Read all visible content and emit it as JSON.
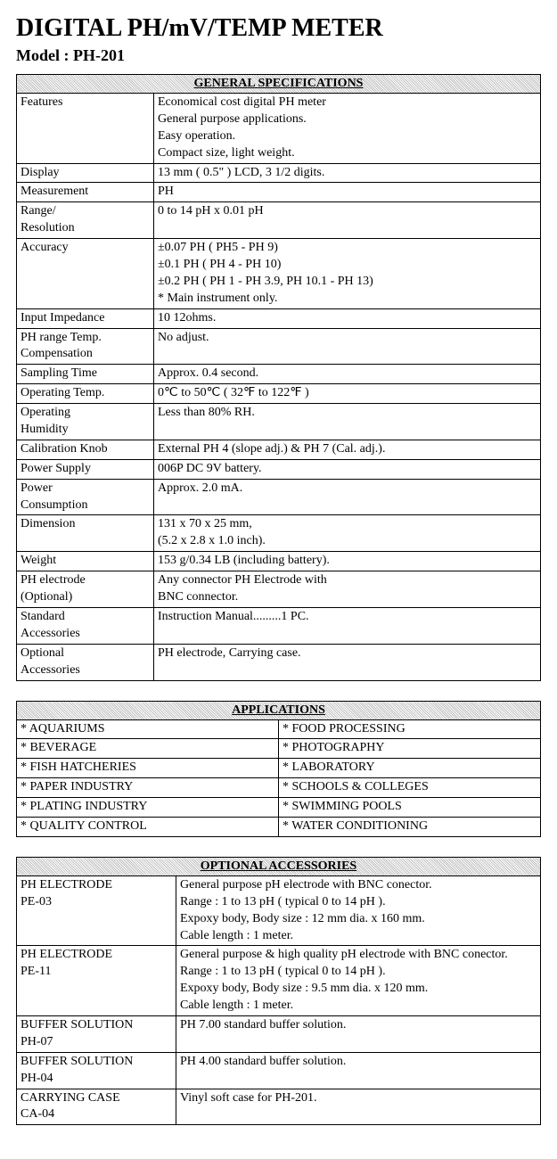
{
  "title": "DIGITAL PH/mV/TEMP METER",
  "model": "Model : PH-201",
  "specs": {
    "header": "GENERAL SPECIFICATIONS",
    "rows": [
      {
        "label": "Features",
        "value": "Economical cost digital PH  meter\nGeneral purpose applications.\nEasy operation.\nCompact size, light weight."
      },
      {
        "label": "Display",
        "value": "13 mm ( 0.5\" ) LCD, 3 1/2 digits."
      },
      {
        "label": "Measurement",
        "value": "PH"
      },
      {
        "label": "Range/\nResolution",
        "value": "0 to 14 pH x 0.01 pH"
      },
      {
        "label": "Accuracy",
        "value": "±0.07 PH ( PH5 - PH 9)\n±0.1 PH ( PH 4 - PH 10)\n±0.2 PH ( PH 1 - PH 3.9, PH 10.1 - PH 13)\n*  Main instrument only."
      },
      {
        "label": "Input Impedance",
        "value": "10     12ohms."
      },
      {
        "label": "PH range Temp.\nCompensation",
        "value": "No adjust."
      },
      {
        "label": "Sampling Time",
        "value": "Approx. 0.4 second."
      },
      {
        "label": "Operating Temp.",
        "value": "0℃ to 50℃ ( 32℉  to 122℉ )"
      },
      {
        "label": "Operating\nHumidity",
        "value": "Less than 80% RH."
      },
      {
        "label": "Calibration Knob",
        "value": "External PH 4 (slope adj.) & PH 7 (Cal. adj.)."
      },
      {
        "label": "Power Supply",
        "value": "006P DC 9V battery."
      },
      {
        "label": "Power\nConsumption",
        "value": "Approx. 2.0 mA."
      },
      {
        "label": "Dimension",
        "value": "131 x 70 x 25 mm,\n(5.2 x 2.8 x 1.0 inch)."
      },
      {
        "label": "Weight",
        "value": "153 g/0.34 LB (including battery)."
      },
      {
        "label": "PH electrode\n(Optional)",
        "value": "Any connector PH Electrode with\nBNC connector."
      },
      {
        "label": "Standard\nAccessories",
        "value": "Instruction Manual.........1 PC."
      },
      {
        "label": "Optional\nAccessories",
        "value": "PH electrode, Carrying case."
      }
    ]
  },
  "apps": {
    "header": "APPLICATIONS",
    "rows": [
      {
        "left": "* AQUARIUMS",
        "right": "* FOOD PROCESSING"
      },
      {
        "left": "* BEVERAGE",
        "right": "* PHOTOGRAPHY"
      },
      {
        "left": "* FISH HATCHERIES",
        "right": "* LABORATORY"
      },
      {
        "left": "* PAPER INDUSTRY",
        "right": "* SCHOOLS & COLLEGES"
      },
      {
        "left": "* PLATING INDUSTRY",
        "right": "* SWIMMING POOLS"
      },
      {
        "left": "* QUALITY CONTROL",
        "right": "* WATER CONDITIONING"
      }
    ]
  },
  "accessories": {
    "header": "OPTIONAL ACCESSORIES",
    "rows": [
      {
        "label": "PH ELECTRODE\nPE-03",
        "value": "General purpose pH electrode with BNC conector.\nRange : 1 to 13 pH ( typical 0 to 14 pH ).\nExpoxy body,  Body size : 12 mm dia. x 160 mm.\nCable length : 1 meter."
      },
      {
        "label": "PH ELECTRODE\nPE-11",
        "value": "General purpose & high quality pH electrode with BNC conector.\nRange : 1 to 13 pH ( typical 0 to 14 pH ).\nExpoxy body,  Body size : 9.5 mm dia. x 120 mm.\nCable length : 1 meter."
      },
      {
        "label": "BUFFER SOLUTION\nPH-07",
        "value": "PH 7.00 standard buffer solution."
      },
      {
        "label": "BUFFER SOLUTION\nPH-04",
        "value": "PH 4.00 standard buffer solution."
      },
      {
        "label": "CARRYING CASE\nCA-04",
        "value": "Vinyl soft case for PH-201."
      }
    ]
  }
}
